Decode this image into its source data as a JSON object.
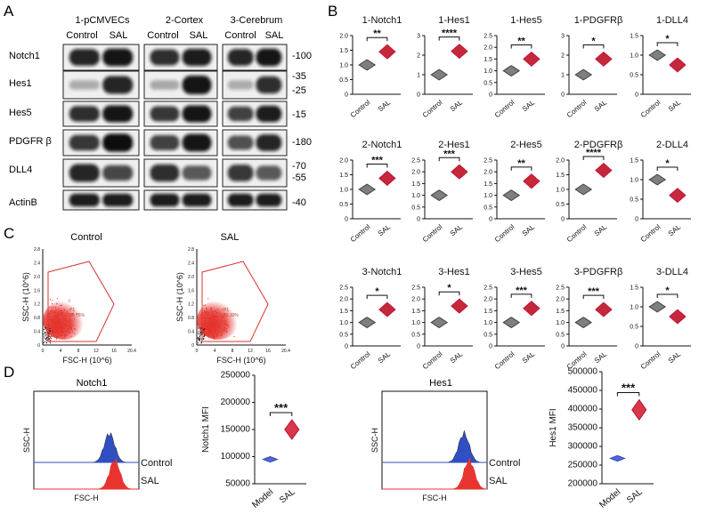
{
  "panel_labels": {
    "a": "A",
    "b": "B",
    "c": "C",
    "d": "D"
  },
  "western_blot": {
    "groups": [
      "1-pCMVECs",
      "2-Cortex",
      "3-Cerebrum"
    ],
    "conditions": [
      "Control",
      "SAL"
    ],
    "rows": [
      {
        "label": "Notch1",
        "markers": [
          "-100"
        ]
      },
      {
        "label": "Hes1",
        "markers": [
          "-35",
          "-25"
        ]
      },
      {
        "label": "Hes5",
        "markers": [
          "-15"
        ]
      },
      {
        "label": "PDGFR β",
        "markers": [
          "-180"
        ]
      },
      {
        "label": "DLL4",
        "markers": [
          "-70",
          "-55"
        ]
      },
      {
        "label": "ActinB",
        "markers": [
          "-40"
        ]
      }
    ],
    "band_intensity": [
      [
        [
          0.85,
          0.95
        ],
        [
          0.8,
          0.9
        ],
        [
          0.85,
          0.95
        ]
      ],
      [
        [
          0.05,
          0.85
        ],
        [
          0.08,
          0.95
        ],
        [
          0.05,
          0.8
        ]
      ],
      [
        [
          0.8,
          0.95
        ],
        [
          0.75,
          0.95
        ],
        [
          0.7,
          0.9
        ]
      ],
      [
        [
          0.75,
          1.0
        ],
        [
          0.7,
          0.95
        ],
        [
          0.6,
          0.85
        ]
      ],
      [
        [
          0.85,
          0.65
        ],
        [
          0.8,
          0.55
        ],
        [
          0.75,
          0.55
        ]
      ],
      [
        [
          0.9,
          0.9
        ],
        [
          0.9,
          0.9
        ],
        [
          0.9,
          0.9
        ]
      ]
    ]
  },
  "violin_panel": {
    "conditions": [
      "Control",
      "SAL"
    ],
    "colors": {
      "control": "#7f7f7f",
      "sal": "#c6283b"
    }
  },
  "flow": {
    "plots": [
      {
        "title": "Control",
        "gate_label": "P1",
        "gate_value": "89.76%"
      },
      {
        "title": "SAL",
        "gate_label": "P1",
        "gate_value": "93.33%"
      }
    ],
    "xlabel": "FSC-H (10^6)",
    "ylabel": "SSC-H (10^6)",
    "xticks": [
      "0",
      "4",
      "8",
      "12",
      "16",
      "20.4"
    ],
    "yticks": [
      "0",
      "0.4",
      "0.8",
      "1.2",
      "1.6",
      "2.0",
      "2.4",
      "2.8"
    ]
  },
  "histograms": [
    {
      "title": "Notch1",
      "xlabel": "FSC-H",
      "ylabel": "SSC-H",
      "labels": [
        "Control",
        "SAL"
      ]
    },
    {
      "title": "Hes1",
      "xlabel": "FSC-H",
      "ylabel": "SSC-H",
      "labels": [
        "Control",
        "SAL"
      ]
    }
  ],
  "colors": {
    "blue": "#2f4fc2",
    "red": "#e8342f",
    "violin_blue": "#5567d6",
    "violin_red": "#d9374a"
  },
  "chart_data": [
    {
      "type": "violin",
      "title": "1-Notch1",
      "categories": [
        "Control",
        "SAL"
      ],
      "values": [
        1.0,
        1.45
      ],
      "significance": "**",
      "ylim": [
        0,
        2.0
      ],
      "yticks": [
        "0",
        "0.5",
        "1.0",
        "1.5",
        "2.0"
      ]
    },
    {
      "type": "violin",
      "title": "1-Hes1",
      "categories": [
        "Control",
        "SAL"
      ],
      "values": [
        1.0,
        2.2
      ],
      "significance": "****",
      "ylim": [
        0,
        3
      ],
      "yticks": [
        "0",
        "1",
        "2",
        "3"
      ]
    },
    {
      "type": "violin",
      "title": "1-Hes5",
      "categories": [
        "Control",
        "SAL"
      ],
      "values": [
        1.0,
        1.5
      ],
      "significance": "**",
      "ylim": [
        0,
        2.5
      ],
      "yticks": [
        "0",
        "0.5",
        "1.0",
        "1.5",
        "2.0",
        "2.5"
      ]
    },
    {
      "type": "violin",
      "title": "1-PDGFRβ",
      "categories": [
        "Control",
        "SAL"
      ],
      "values": [
        1.0,
        1.8
      ],
      "significance": "*",
      "ylim": [
        0,
        3
      ],
      "yticks": [
        "0",
        "1",
        "2",
        "3"
      ]
    },
    {
      "type": "violin",
      "title": "1-DLL4",
      "categories": [
        "Control",
        "SAL"
      ],
      "values": [
        1.0,
        0.75
      ],
      "significance": "*",
      "ylim": [
        0,
        1.5
      ],
      "yticks": [
        "0",
        "0.5",
        "1.0",
        "1.5"
      ]
    },
    {
      "type": "violin",
      "title": "2-Notch1",
      "categories": [
        "Control",
        "SAL"
      ],
      "values": [
        1.0,
        1.38
      ],
      "significance": "***",
      "ylim": [
        0,
        2.0
      ],
      "yticks": [
        "0",
        "0.5",
        "1.0",
        "1.5",
        "2.0"
      ]
    },
    {
      "type": "violin",
      "title": "2-Hes1",
      "categories": [
        "Control",
        "SAL"
      ],
      "values": [
        1.0,
        2.0
      ],
      "significance": "***",
      "ylim": [
        0,
        2.5
      ],
      "yticks": [
        "0",
        "0.5",
        "1.0",
        "1.5",
        "2.0",
        "2.5"
      ]
    },
    {
      "type": "violin",
      "title": "2-Hes5",
      "categories": [
        "Control",
        "SAL"
      ],
      "values": [
        1.0,
        1.6
      ],
      "significance": "**",
      "ylim": [
        0,
        2.5
      ],
      "yticks": [
        "0",
        "0.5",
        "1.0",
        "1.5",
        "2.0",
        "2.5"
      ]
    },
    {
      "type": "violin",
      "title": "2-PDGFRβ",
      "categories": [
        "Control",
        "SAL"
      ],
      "values": [
        1.0,
        1.65
      ],
      "significance": "****",
      "ylim": [
        0,
        2.0
      ],
      "yticks": [
        "0",
        "0.5",
        "1.0",
        "1.5",
        "2.0"
      ]
    },
    {
      "type": "violin",
      "title": "2-DLL4",
      "categories": [
        "Control",
        "SAL"
      ],
      "values": [
        1.0,
        0.6
      ],
      "significance": "*",
      "ylim": [
        0,
        1.5
      ],
      "yticks": [
        "0",
        "0.5",
        "1.0",
        "1.5"
      ]
    },
    {
      "type": "violin",
      "title": "3-Notch1",
      "categories": [
        "Control",
        "SAL"
      ],
      "values": [
        1.0,
        1.55
      ],
      "significance": "*",
      "ylim": [
        0,
        2.5
      ],
      "yticks": [
        "0",
        "0.5",
        "1.0",
        "1.5",
        "2.0",
        "2.5"
      ]
    },
    {
      "type": "violin",
      "title": "3-Hes1",
      "categories": [
        "Control",
        "SAL"
      ],
      "values": [
        1.0,
        1.7
      ],
      "significance": "*",
      "ylim": [
        0,
        2.5
      ],
      "yticks": [
        "0",
        "0.5",
        "1.0",
        "1.5",
        "2.0",
        "2.5"
      ]
    },
    {
      "type": "violin",
      "title": "3-Hes5",
      "categories": [
        "Control",
        "SAL"
      ],
      "values": [
        1.0,
        1.6
      ],
      "significance": "***",
      "ylim": [
        0,
        2.5
      ],
      "yticks": [
        "0",
        "0.5",
        "1.0",
        "1.5",
        "2.0",
        "2.5"
      ]
    },
    {
      "type": "violin",
      "title": "3-PDGFRβ",
      "categories": [
        "Control",
        "SAL"
      ],
      "values": [
        1.0,
        1.55
      ],
      "significance": "***",
      "ylim": [
        0,
        2.5
      ],
      "yticks": [
        "0",
        "0.5",
        "1.0",
        "1.5",
        "2.0",
        "2.5"
      ]
    },
    {
      "type": "violin",
      "title": "3-DLL4",
      "categories": [
        "Control",
        "SAL"
      ],
      "values": [
        1.0,
        0.75
      ],
      "significance": "*",
      "ylim": [
        0,
        1.5
      ],
      "yticks": [
        "0",
        "0.5",
        "1.0",
        "1.5"
      ]
    },
    {
      "type": "violin",
      "title": "",
      "ylabel": "Notch1 MFI",
      "categories": [
        "Model",
        "SAL"
      ],
      "values": [
        95000,
        150000
      ],
      "significance": "***",
      "ylim": [
        50000,
        250000
      ],
      "yticks": [
        "50000",
        "100000",
        "150000",
        "200000",
        "250000"
      ]
    },
    {
      "type": "violin",
      "title": "",
      "ylabel": "Hes1 MFI",
      "categories": [
        "Model",
        "SAL"
      ],
      "values": [
        268000,
        398000
      ],
      "significance": "***",
      "ylim": [
        200000,
        500000
      ],
      "yticks": [
        "200000",
        "250000",
        "300000",
        "350000",
        "400000",
        "450000",
        "500000"
      ]
    }
  ]
}
